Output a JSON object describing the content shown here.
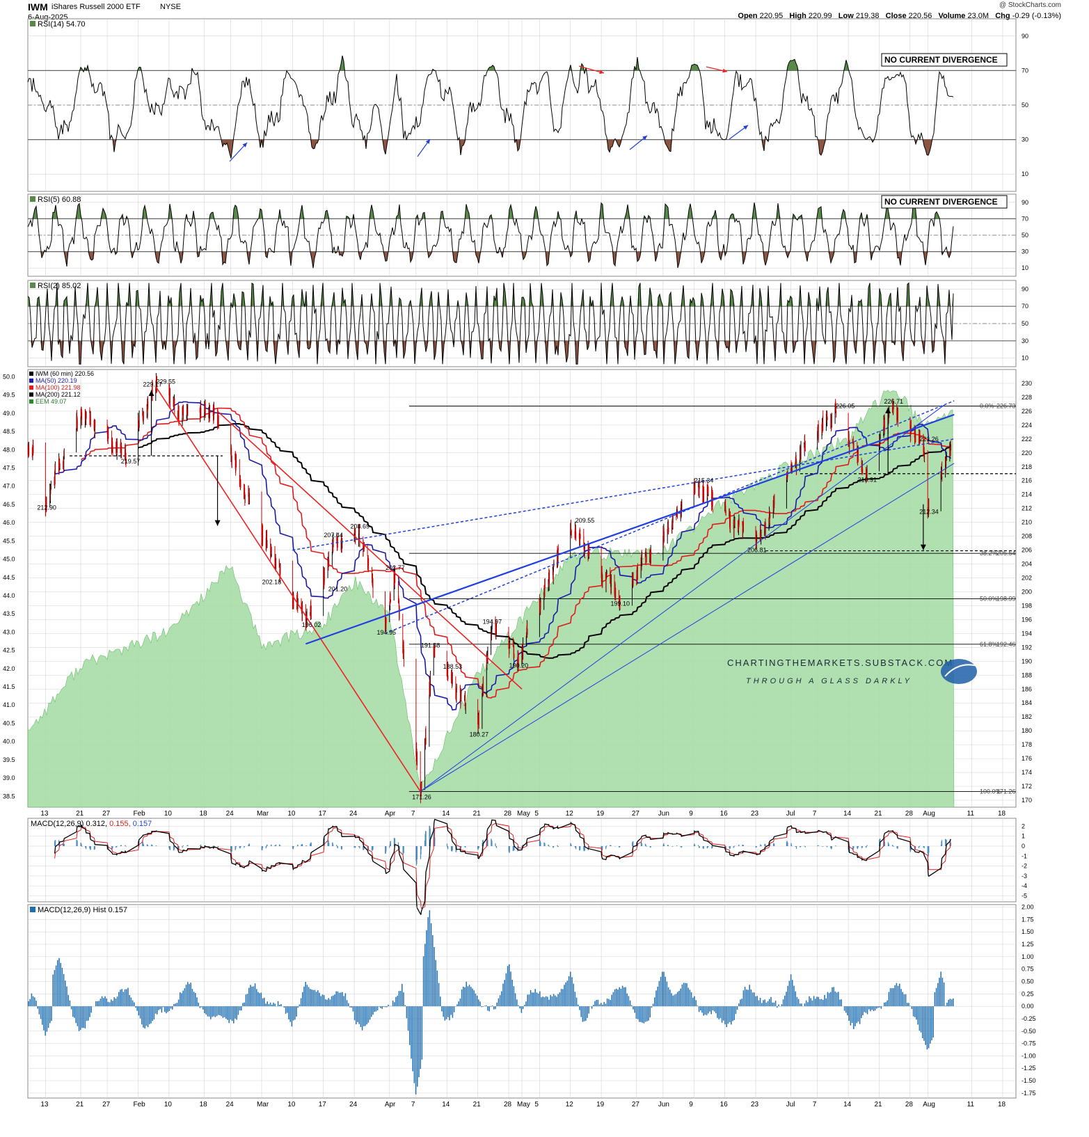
{
  "header": {
    "symbol": "IWM",
    "name": "iShares Russell 2000 ETF",
    "exchange": "NYSE",
    "date": "6-Aug-2025",
    "brand": "@ StockCharts.com",
    "open_label": "Open",
    "open": "220.95",
    "high_label": "High",
    "high": "220.99",
    "low_label": "Low",
    "low": "219.38",
    "close_label": "Close",
    "close": "220.56",
    "volume_label": "Volume",
    "volume": "23.0M",
    "chg_label": "Chg",
    "chg": "-0.29 (-0.13%)"
  },
  "colors": {
    "price_up": "#000000",
    "price_down": "#d00000",
    "ma50": "#1a1aa6",
    "ma100": "#e01b1b",
    "ma200": "#000000",
    "eem_fill": "#a8dca8",
    "eem_line": "#5bb85b",
    "trend_blue": "#1f3fe0",
    "trend_red": "#ee2222",
    "hist": "#1f6fb2",
    "rsi_over": "#5a8a4a",
    "rsi_under": "#8b5542",
    "grid": "#d3d3d3"
  },
  "chart_data": [
    {
      "type": "line",
      "panel": "RSI(14)",
      "title": "RSI(14) 54.70",
      "current": 54.7,
      "ylim": [
        0,
        100
      ],
      "ticks": [
        10,
        30,
        50,
        70,
        90
      ],
      "levels": [
        30,
        50,
        70
      ],
      "annotation": "NO CURRENT DIVERGENCE",
      "key_values": [
        {
          "x": "Jan 13",
          "y": 45
        },
        {
          "x": "Jan 21",
          "y": 72
        },
        {
          "x": "Jan 31",
          "y": 30
        },
        {
          "x": "Feb 10",
          "y": 68
        },
        {
          "x": "Feb 24",
          "y": 18
        },
        {
          "x": "Mar 10",
          "y": 65
        },
        {
          "x": "Mar 31",
          "y": 20
        },
        {
          "x": "Apr 10",
          "y": 68
        },
        {
          "x": "Apr 24",
          "y": 72
        },
        {
          "x": "May 12",
          "y": 74
        },
        {
          "x": "May 23",
          "y": 25
        },
        {
          "x": "Jun 9",
          "y": 74
        },
        {
          "x": "Jun 16",
          "y": 30
        },
        {
          "x": "Jul 1",
          "y": 76
        },
        {
          "x": "Jul 18",
          "y": 30
        },
        {
          "x": "Jul 25",
          "y": 68
        },
        {
          "x": "Aug 1",
          "y": 20
        },
        {
          "x": "Aug 6",
          "y": 54.7
        }
      ]
    },
    {
      "type": "line",
      "panel": "RSI(5)",
      "title": "RSI(5) 60.88",
      "current": 60.88,
      "ylim": [
        0,
        100
      ],
      "ticks": [
        10,
        30,
        50,
        70,
        90
      ],
      "levels": [
        30,
        50,
        70
      ],
      "annotation": "NO CURRENT DIVERGENCE"
    },
    {
      "type": "line",
      "panel": "RSI(2)",
      "title": "RSI(2) 85.02",
      "current": 85.02,
      "ylim": [
        0,
        100
      ],
      "ticks": [
        10,
        30,
        50,
        70,
        90
      ],
      "levels": [
        30,
        50,
        70
      ]
    },
    {
      "type": "line",
      "panel": "price",
      "legend": [
        {
          "label": "IWM (60 min) 220.56",
          "color": "#000000"
        },
        {
          "label": "MA(50) 220.19",
          "color": "#1a1aa6"
        },
        {
          "label": "MA(100) 221.98",
          "color": "#e01b1b"
        },
        {
          "label": "MA(200) 221.12",
          "color": "#000000"
        },
        {
          "label": "EEM 49.07",
          "color": "#2a8a2a"
        }
      ],
      "ylim": [
        169,
        232
      ],
      "y_ticks": [
        170,
        172,
        174,
        176,
        178,
        180,
        182,
        184,
        186,
        188,
        190,
        192,
        194,
        196,
        198,
        200,
        202,
        204,
        206,
        208,
        210,
        212,
        214,
        216,
        218,
        220,
        222,
        224,
        226,
        228,
        230
      ],
      "eem_ylim": [
        38.2,
        50.2
      ],
      "eem_ticks": [
        "38.5",
        "39.0",
        "39.5",
        "40.0",
        "40.5",
        "41.0",
        "41.5",
        "42.0",
        "42.5",
        "43.0",
        "43.5",
        "44.0",
        "44.5",
        "45.0",
        "45.5",
        "46.0",
        "46.5",
        "47.0",
        "47.5",
        "48.0",
        "48.5",
        "49.0",
        "49.5",
        "50.0"
      ],
      "x_labels": [
        "13",
        "21",
        "27",
        "Feb",
        "10",
        "18",
        "24",
        "Mar",
        "10",
        "17",
        "24",
        "Apr",
        "7",
        "14",
        "21",
        "28",
        "May",
        "5",
        "12",
        "19",
        "27",
        "Jun",
        "9",
        "16",
        "23",
        "Jul",
        "7",
        "14",
        "21",
        "28",
        "Aug",
        "11",
        "18"
      ],
      "price_path": [
        {
          "x": "Jan 10",
          "y": 221
        },
        {
          "x": "Jan 13",
          "y": 212.9
        },
        {
          "x": "Jan 21",
          "y": 226
        },
        {
          "x": "Jan 31",
          "y": 219.57
        },
        {
          "x": "Feb 7",
          "y": 229.55
        },
        {
          "x": "Feb 14",
          "y": 225
        },
        {
          "x": "Feb 20",
          "y": 226
        },
        {
          "x": "Mar 4",
          "y": 207
        },
        {
          "x": "Mar 13",
          "y": 196.02
        },
        {
          "x": "Mar 20",
          "y": 207.44
        },
        {
          "x": "Mar 25",
          "y": 208.69
        },
        {
          "x": "Mar 31",
          "y": 194.95
        },
        {
          "x": "Apr 2",
          "y": 202.77
        },
        {
          "x": "Apr 8",
          "y": 171.26
        },
        {
          "x": "Apr 11",
          "y": 191.58
        },
        {
          "x": "Apr 14",
          "y": 188.53
        },
        {
          "x": "Apr 21",
          "y": 180.27
        },
        {
          "x": "Apr 24",
          "y": 194.97
        },
        {
          "x": "Apr 30",
          "y": 190.2
        },
        {
          "x": "May 12",
          "y": 209.55
        },
        {
          "x": "May 23",
          "y": 199.1
        },
        {
          "x": "Jun 10",
          "y": 215.34
        },
        {
          "x": "Jun 23",
          "y": 206.81
        },
        {
          "x": "Jul 3",
          "y": 220
        },
        {
          "x": "Jul 11",
          "y": 226.05
        },
        {
          "x": "Jul 18",
          "y": 216.91
        },
        {
          "x": "Jul 24",
          "y": 226.71
        },
        {
          "x": "Jul 31",
          "y": 221.26
        },
        {
          "x": "Aug 1",
          "y": 212.34
        },
        {
          "x": "Aug 6",
          "y": 220.56
        }
      ],
      "price_labels": [
        {
          "x": "Jan 13",
          "y": 212.9,
          "text": "212.90"
        },
        {
          "x": "Feb 6",
          "y": 229.17,
          "text": "229.17"
        },
        {
          "x": "Feb 9",
          "y": 229.55,
          "text": "229.55"
        },
        {
          "x": "Feb 1",
          "y": 219.57,
          "text": "219.57"
        },
        {
          "x": "Mar 5",
          "y": 202.18,
          "text": "202.18"
        },
        {
          "x": "Mar 14",
          "y": 196.02,
          "text": "196.02"
        },
        {
          "x": "Mar 19",
          "y": 207.44,
          "text": "207.44"
        },
        {
          "x": "Mar 20",
          "y": 201.2,
          "text": "201.20"
        },
        {
          "x": "Mar 25",
          "y": 208.69,
          "text": "208.69"
        },
        {
          "x": "Apr 2",
          "y": 202.77,
          "text": "202.77"
        },
        {
          "x": "Mar 31",
          "y": 194.95,
          "text": "194.95"
        },
        {
          "x": "Apr 8",
          "y": 171.26,
          "text": "171.26"
        },
        {
          "x": "Apr 10",
          "y": 191.58,
          "text": "191.58"
        },
        {
          "x": "Apr 15",
          "y": 188.53,
          "text": "188.53"
        },
        {
          "x": "Apr 21",
          "y": 180.27,
          "text": "180.27"
        },
        {
          "x": "Apr 24",
          "y": 194.97,
          "text": "194.97"
        },
        {
          "x": "Apr 30",
          "y": 190.2,
          "text": "190.20"
        },
        {
          "x": "May 15",
          "y": 209.55,
          "text": "209.55"
        },
        {
          "x": "May 23",
          "y": 199.1,
          "text": "199.10"
        },
        {
          "x": "Jun 11",
          "y": 215.34,
          "text": "215.34"
        },
        {
          "x": "Jun 23",
          "y": 206.81,
          "text": "206.81"
        },
        {
          "x": "Jul 13",
          "y": 226.05,
          "text": "226.05"
        },
        {
          "x": "Jul 18",
          "y": 216.91,
          "text": "216.91"
        },
        {
          "x": "Jul 24",
          "y": 226.71,
          "text": "226.71"
        },
        {
          "x": "Aug 1",
          "y": 221.26,
          "text": "221.26"
        },
        {
          "x": "Aug 1",
          "y": 212.34,
          "text": "212.34"
        }
      ],
      "fib_levels": [
        {
          "pct": "0.0%",
          "value": 226.73
        },
        {
          "pct": "38.2%",
          "value": 205.54
        },
        {
          "pct": "50.0%",
          "value": 198.99
        },
        {
          "pct": "61.8%",
          "value": 192.46
        },
        {
          "pct": "100.0%",
          "value": 171.26
        }
      ],
      "watermark": [
        "CHARTINGTHEMARKETS.SUBSTACK.COM",
        "THROUGH A GLASS DARKLY"
      ]
    },
    {
      "type": "line",
      "panel": "MACD",
      "title_parts": [
        "MACD(12,26,9) 0.312,",
        " 0.155,",
        " 0.157"
      ],
      "ylim": [
        -5.6,
        2.8
      ],
      "ticks": [
        -5,
        -4,
        -3,
        -2,
        -1,
        0,
        1,
        2
      ]
    },
    {
      "type": "bar",
      "panel": "MACD Hist",
      "title": "MACD(12,26,9) Hist 0.157",
      "current": 0.157,
      "ylim": [
        -1.85,
        2.05
      ],
      "ticks": [
        "-1.75",
        "-1.50",
        "-1.25",
        "-1.00",
        "-0.75",
        "-0.50",
        "-0.25",
        "0.00",
        "0.25",
        "0.50",
        "0.75",
        "1.00",
        "1.25",
        "1.50",
        "1.75",
        "2.00"
      ],
      "key_values": [
        {
          "x": "Jan 16",
          "y": 1.0
        },
        {
          "x": "Jan 13",
          "y": -0.6
        },
        {
          "x": "Mar 13",
          "y": 0.5
        },
        {
          "x": "Apr 7",
          "y": -1.8
        },
        {
          "x": "Apr 10",
          "y": 2.0
        },
        {
          "x": "Apr 28",
          "y": 0.9
        },
        {
          "x": "May 12",
          "y": 0.7
        },
        {
          "x": "Jun 2",
          "y": 0.75
        },
        {
          "x": "Jul 1",
          "y": 0.65
        },
        {
          "x": "Aug 1",
          "y": -0.9
        },
        {
          "x": "Aug 4",
          "y": 0.7
        },
        {
          "x": "Aug 6",
          "y": 0.157
        }
      ]
    }
  ]
}
